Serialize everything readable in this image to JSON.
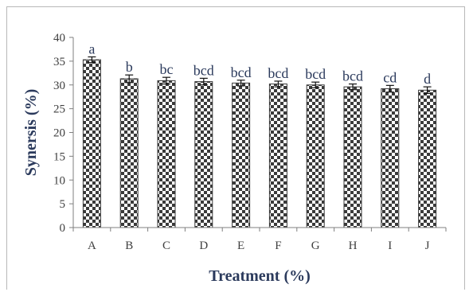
{
  "chart_data": {
    "type": "bar",
    "title": "",
    "xlabel": "Treatment (%)",
    "ylabel": "Synersis (%)",
    "categories": [
      "A",
      "B",
      "C",
      "D",
      "E",
      "F",
      "G",
      "H",
      "I",
      "J"
    ],
    "values": [
      35.3,
      31.3,
      30.9,
      30.7,
      30.4,
      30.2,
      30.0,
      29.6,
      29.2,
      28.9
    ],
    "errors": [
      0.6,
      0.8,
      0.7,
      0.7,
      0.6,
      0.6,
      0.6,
      0.6,
      0.7,
      0.7
    ],
    "letters": [
      "a",
      "b",
      "bc",
      "bcd",
      "bcd",
      "bcd",
      "bcd",
      "bcd",
      "cd",
      "d"
    ],
    "ylim": [
      0,
      40
    ],
    "yticks": [
      0,
      5,
      10,
      15,
      20,
      25,
      30,
      35,
      40
    ],
    "grid": false,
    "legend": "none",
    "bar_pattern": "checkerboard",
    "colors": {
      "pattern_dark": "#3a3a3a",
      "pattern_light": "#ffffff",
      "title_text": "#2b3a5c",
      "axis": "#7f7f7f"
    }
  }
}
